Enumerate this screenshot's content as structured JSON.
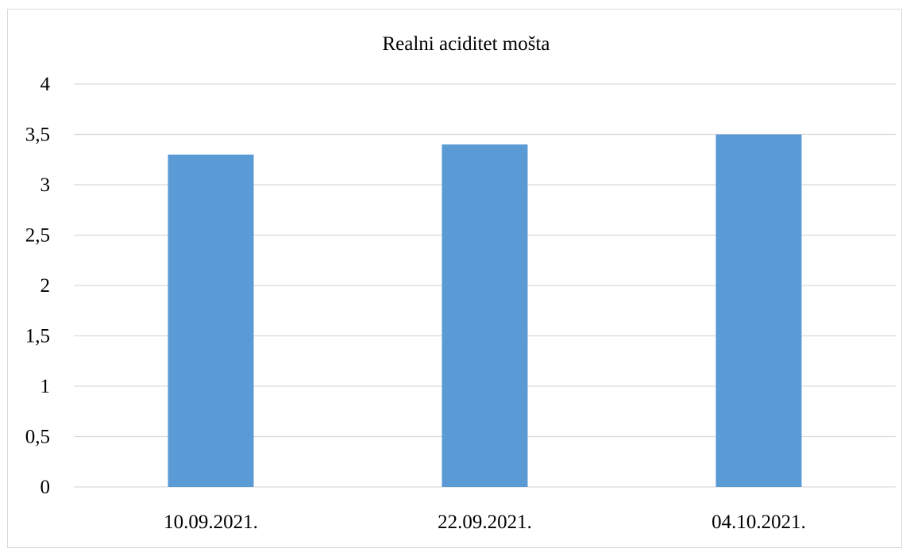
{
  "chart_data": {
    "type": "bar",
    "title": "Realni aciditet mošta",
    "xlabel": "",
    "ylabel": "",
    "categories": [
      "10.09.2021.",
      "22.09.2021.",
      "04.10.2021."
    ],
    "values": [
      3.3,
      3.4,
      3.5
    ],
    "ylim": [
      0,
      4
    ],
    "yticks": [
      0,
      0.5,
      1,
      1.5,
      2,
      2.5,
      3,
      3.5,
      4
    ],
    "ytick_labels": [
      "0",
      "0,5",
      "1",
      "1,5",
      "2",
      "2,5",
      "3",
      "3,5",
      "4"
    ],
    "grid": true,
    "legend": "none",
    "bar_color": "#5b9bd5"
  }
}
